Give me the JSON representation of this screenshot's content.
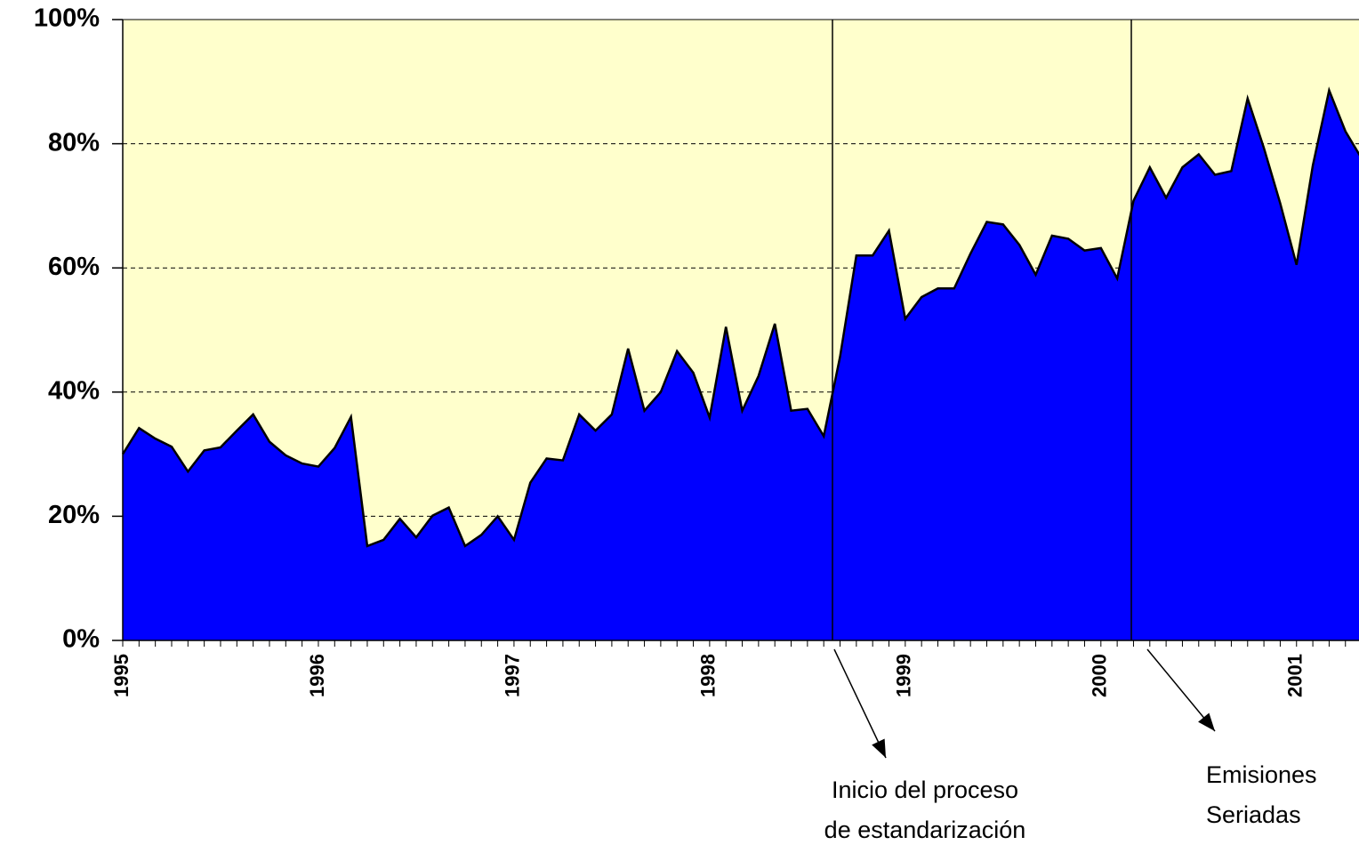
{
  "chart_data": {
    "type": "area",
    "categories": [
      "1995",
      null,
      null,
      null,
      null,
      null,
      null,
      null,
      null,
      null,
      null,
      null,
      "1996",
      null,
      null,
      null,
      null,
      null,
      null,
      null,
      null,
      null,
      null,
      null,
      "1997",
      null,
      null,
      null,
      null,
      null,
      null,
      null,
      null,
      null,
      null,
      null,
      "1998",
      null,
      null,
      null,
      null,
      null,
      null,
      null,
      null,
      null,
      null,
      null,
      "1999",
      null,
      null,
      null,
      null,
      null,
      null,
      null,
      null,
      null,
      null,
      null,
      "2000",
      null,
      null,
      null,
      null,
      null,
      null,
      null,
      null,
      null,
      null,
      null,
      "2001",
      null,
      null,
      null,
      null
    ],
    "series": [
      {
        "color": "#0000ff",
        "values": [
          30,
          34.2,
          32.5,
          31.2,
          27.2,
          30.6,
          31.1,
          33.8,
          36.4,
          32,
          29.8,
          28.5,
          28,
          31,
          36,
          15.2,
          16.2,
          19.6,
          16.6,
          20.1,
          21.4,
          15.2,
          17,
          20,
          16.2,
          25.4,
          29.3,
          29,
          36.4,
          33.8,
          36.4,
          47,
          37,
          40,
          46.6,
          43.1,
          35.9,
          50.5,
          37,
          42.6,
          51,
          37,
          37.3,
          32.9,
          45.7,
          62,
          62,
          66,
          51.8,
          55.3,
          56.7,
          56.7,
          62.3,
          67.4,
          67,
          63.7,
          58.9,
          65.2,
          64.7,
          62.8,
          63.2,
          58.3,
          70.8,
          76.2,
          71.3,
          76.2,
          78.3,
          75,
          75.6,
          87.3,
          79.3,
          70.4,
          60.5,
          76.5,
          88.6,
          82,
          77.6
        ]
      }
    ],
    "ylim": [
      0,
      100
    ],
    "yticks": [
      {
        "value": 0,
        "label": "0%"
      },
      {
        "value": 20,
        "label": "20%"
      },
      {
        "value": 40,
        "label": "40%"
      },
      {
        "value": 60,
        "label": "60%"
      },
      {
        "value": 80,
        "label": "80%"
      },
      {
        "value": 100,
        "label": "100%"
      }
    ],
    "grid": true,
    "background": "#ffffcc",
    "annotations": [
      {
        "lines": [
          "Inicio del proceso",
          "de estandarización"
        ]
      },
      {
        "lines": [
          "Emisiones",
          "Seriadas"
        ]
      }
    ]
  }
}
